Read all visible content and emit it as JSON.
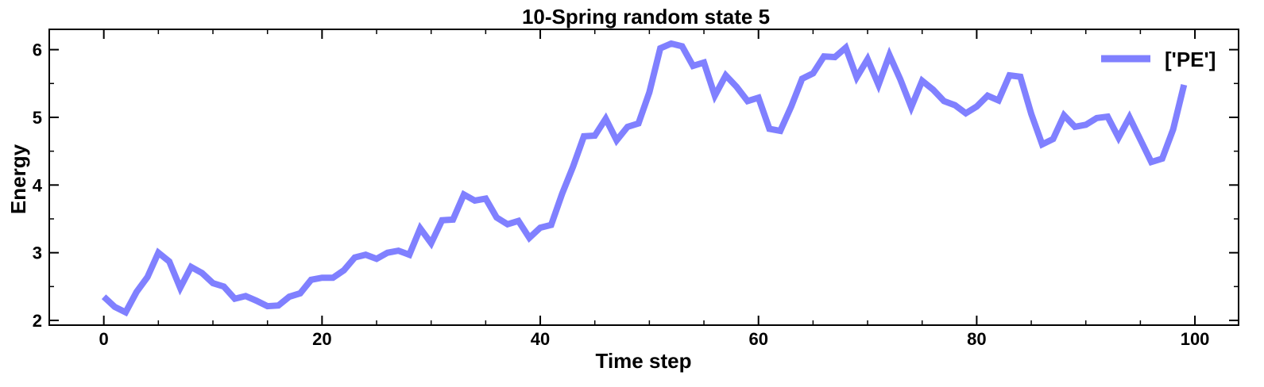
{
  "chart_data": {
    "type": "line",
    "title": "10-Spring random state 5",
    "xlabel": "Time step",
    "ylabel": "Energy",
    "xlim": [
      -5,
      104
    ],
    "ylim": [
      1.93,
      6.3
    ],
    "xticks": [
      0,
      20,
      40,
      60,
      80,
      100
    ],
    "yticks": [
      2,
      3,
      4,
      5,
      6
    ],
    "x_minor_step": 5,
    "y_minor_step": 0.5,
    "grid": false,
    "legend_position": "top-right",
    "series": [
      {
        "name": "['PE']",
        "color": "#8080ff",
        "x": [
          0,
          1,
          2,
          3,
          4,
          5,
          6,
          7,
          8,
          9,
          10,
          11,
          12,
          13,
          14,
          15,
          16,
          17,
          18,
          19,
          20,
          21,
          22,
          23,
          24,
          25,
          26,
          27,
          28,
          29,
          30,
          31,
          32,
          33,
          34,
          35,
          36,
          37,
          38,
          39,
          40,
          41,
          42,
          43,
          44,
          45,
          46,
          47,
          48,
          49,
          50,
          51,
          52,
          53,
          54,
          55,
          56,
          57,
          58,
          59,
          60,
          61,
          62,
          63,
          64,
          65,
          66,
          67,
          68,
          69,
          70,
          71,
          72,
          73,
          74,
          75,
          76,
          77,
          78,
          79,
          80,
          81,
          82,
          83,
          84,
          85,
          86,
          87,
          88,
          89,
          90,
          91,
          92,
          93,
          94,
          95,
          96,
          97,
          98,
          99
        ],
        "values": [
          2.35,
          2.2,
          2.12,
          2.42,
          2.64,
          3.0,
          2.87,
          2.48,
          2.79,
          2.7,
          2.55,
          2.5,
          2.32,
          2.36,
          2.29,
          2.21,
          2.22,
          2.35,
          2.4,
          2.6,
          2.63,
          2.63,
          2.74,
          2.93,
          2.97,
          2.91,
          3.0,
          3.03,
          2.97,
          3.36,
          3.14,
          3.48,
          3.49,
          3.86,
          3.77,
          3.8,
          3.52,
          3.42,
          3.47,
          3.22,
          3.37,
          3.41,
          3.87,
          4.27,
          4.72,
          4.73,
          4.98,
          4.66,
          4.86,
          4.91,
          5.37,
          6.02,
          6.09,
          6.05,
          5.76,
          5.81,
          5.32,
          5.62,
          5.45,
          5.24,
          5.29,
          4.83,
          4.8,
          5.16,
          5.57,
          5.65,
          5.9,
          5.89,
          6.03,
          5.59,
          5.86,
          5.48,
          5.92,
          5.56,
          5.15,
          5.54,
          5.41,
          5.24,
          5.18,
          5.06,
          5.16,
          5.32,
          5.25,
          5.62,
          5.6,
          5.05,
          4.6,
          4.68,
          5.03,
          4.86,
          4.89,
          4.99,
          5.01,
          4.7,
          5.0,
          4.67,
          4.34,
          4.39,
          4.82,
          5.48
        ]
      }
    ]
  }
}
